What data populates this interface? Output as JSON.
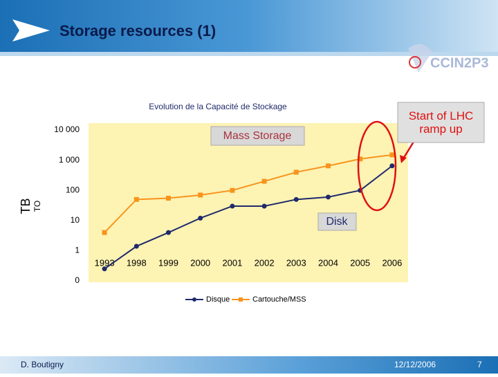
{
  "slide": {
    "title": "Storage resources (1)",
    "logo": "CCIN2P3",
    "author": "D. Boutigny",
    "date": "12/12/2006",
    "page": "7"
  },
  "chart_data": {
    "type": "line",
    "title": "Evolution de la Capacité de Stockage",
    "ylabel": "TB",
    "ylabel_alt": "TO",
    "yscale": "log",
    "categories": [
      "1993",
      "1998",
      "1999",
      "2000",
      "2001",
      "2002",
      "2003",
      "2004",
      "2005",
      "2006"
    ],
    "series": [
      {
        "name": "Disque",
        "color": "#1f2a6b",
        "marker": "circle",
        "values": [
          0.25,
          1.4,
          4,
          12,
          30,
          30,
          50,
          60,
          100,
          650
        ]
      },
      {
        "name": "Cartouche/MSS",
        "color": "#f7941d",
        "marker": "square",
        "values": [
          4,
          50,
          55,
          70,
          100,
          200,
          400,
          650,
          1100,
          1500
        ]
      }
    ],
    "ylim": [
      0.1,
      10000
    ],
    "yticks": [
      {
        "value": 10000,
        "label": "10 000"
      },
      {
        "value": 1000,
        "label": "1 000"
      },
      100,
      10,
      1,
      {
        "value": 0.1,
        "label": "0"
      }
    ],
    "annotations": [
      "Mass Storage",
      "Disk",
      "Start of LHC ramp up"
    ]
  }
}
